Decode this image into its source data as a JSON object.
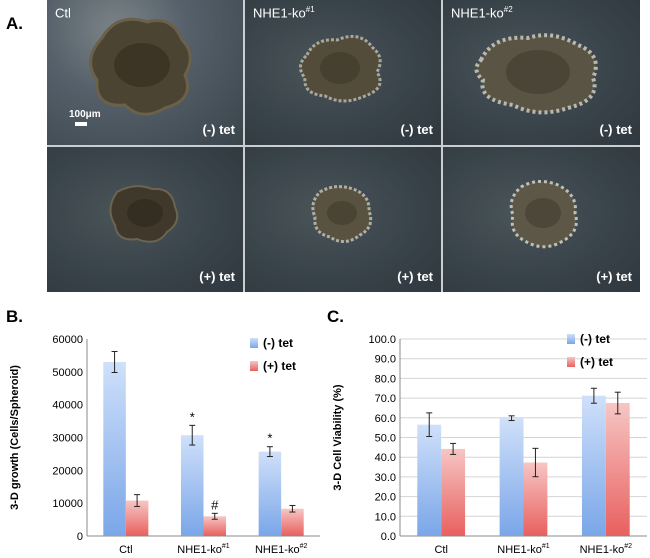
{
  "figure": {
    "panel_a_label": "A.",
    "panel_b_label": "B.",
    "panel_c_label": "C.",
    "scale_bar": "100μm",
    "images": [
      {
        "genotype": "Ctl",
        "sup": "",
        "treatment": "(-) tet"
      },
      {
        "genotype": "NHE1-ko",
        "sup": "#1",
        "treatment": "(-) tet"
      },
      {
        "genotype": "NHE1-ko",
        "sup": "#2",
        "treatment": "(-) tet"
      },
      {
        "genotype": "",
        "sup": "",
        "treatment": "(+) tet"
      },
      {
        "genotype": "",
        "sup": "",
        "treatment": "(+) tet"
      },
      {
        "genotype": "",
        "sup": "",
        "treatment": "(+) tet"
      }
    ]
  },
  "chart_data": [
    {
      "type": "bar",
      "title": "",
      "ylabel": "3-D growth (Cells/Spheroid)",
      "xlabel": "",
      "categories": [
        "Ctl",
        "NHE1-ko",
        "NHE1-ko"
      ],
      "category_sups": [
        "",
        "#1",
        "#2"
      ],
      "ylim": [
        0,
        60000
      ],
      "yticks": [
        "0",
        "10000",
        "20000",
        "30000",
        "40000",
        "50000",
        "60000"
      ],
      "series": [
        {
          "name": "(-) tet",
          "color": "#7aa6e8",
          "values": [
            53000,
            30700,
            25700
          ],
          "errors": [
            3200,
            3000,
            1500
          ]
        },
        {
          "name": "(+) tet",
          "color": "#e8605e",
          "values": [
            10800,
            6000,
            8300
          ],
          "errors": [
            1800,
            900,
            1000
          ]
        }
      ],
      "annotations": [
        {
          "series": 0,
          "category": 1,
          "text": "*"
        },
        {
          "series": 0,
          "category": 2,
          "text": "*"
        },
        {
          "series": 1,
          "category": 1,
          "text": "#"
        }
      ],
      "legend": "top-right",
      "grid": false
    },
    {
      "type": "bar",
      "title": "",
      "ylabel": "3-D Cell Viability (%)",
      "xlabel": "",
      "categories": [
        "Ctl",
        "NHE1-ko",
        "NHE1-ko"
      ],
      "category_sups": [
        "",
        "#1",
        "#2"
      ],
      "ylim": [
        0,
        100
      ],
      "yticks": [
        "0.0",
        "10.0",
        "20.0",
        "30.0",
        "40.0",
        "50.0",
        "60.0",
        "70.0",
        "80.0",
        "90.0",
        "100.0"
      ],
      "series": [
        {
          "name": "(-) tet",
          "color": "#7aa6e8",
          "values": [
            56.5,
            59.8,
            71.2
          ],
          "errors": [
            6.0,
            1.2,
            3.8
          ]
        },
        {
          "name": "(+) tet",
          "color": "#e8605e",
          "values": [
            44.2,
            37.3,
            67.5
          ],
          "errors": [
            2.8,
            7.2,
            5.5
          ]
        }
      ],
      "annotations": [],
      "legend": "top-right",
      "grid": true
    }
  ]
}
